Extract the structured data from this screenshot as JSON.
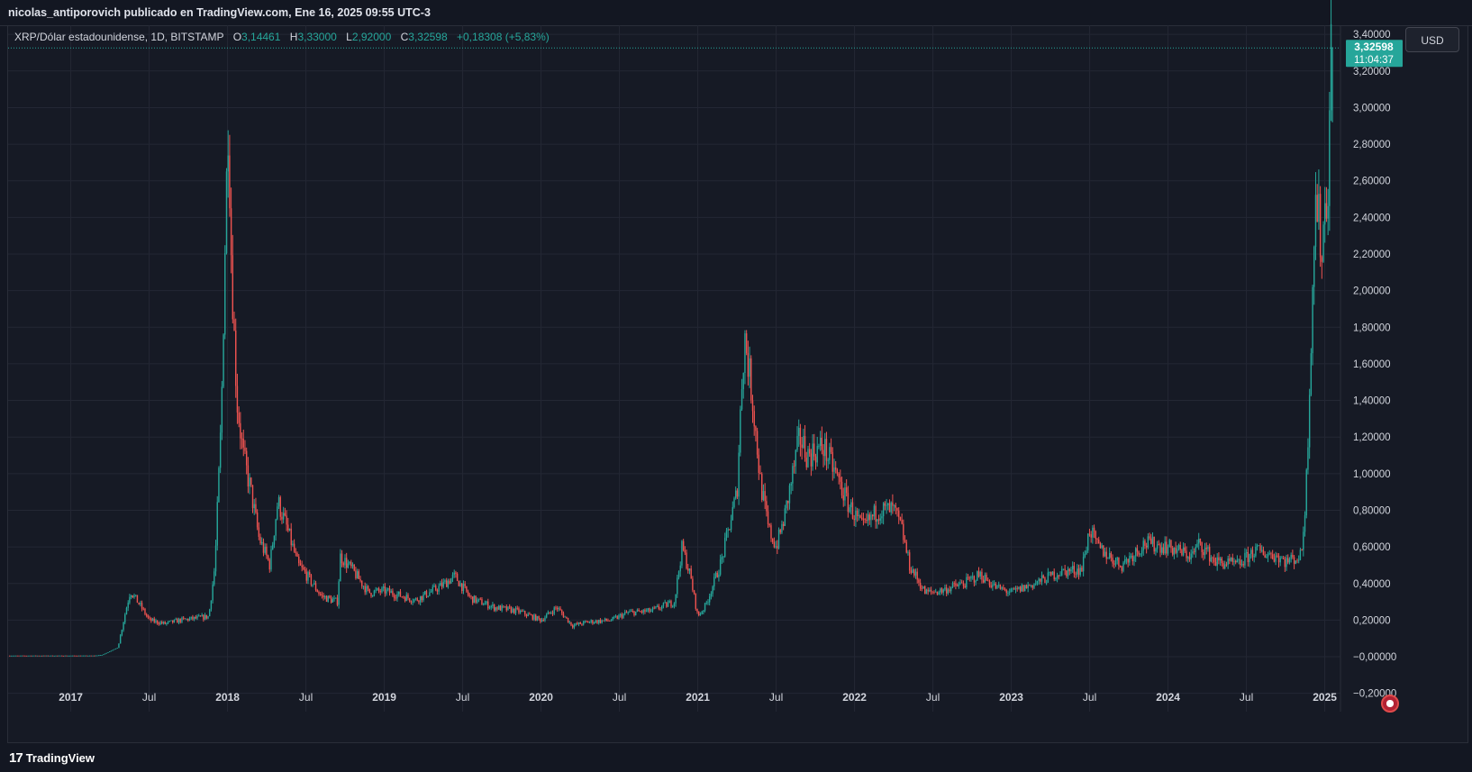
{
  "header": {
    "published_text": "nicolas_antiporovich publicado en TradingView.com, Ene 16, 2025 09:55 UTC-3"
  },
  "legend": {
    "symbol": "XRP/Dólar estadounidense, 1D, BITSTAMP",
    "open_label": "O",
    "open_value": "3,14461",
    "high_label": "H",
    "high_value": "3,33000",
    "low_label": "L",
    "low_value": "2,92000",
    "close_label": "C",
    "close_value": "3,32598",
    "change": "+0,18308 (+5,83%)"
  },
  "currency_button": "USD",
  "price_label": {
    "price": "3,32598",
    "countdown": "11:04:37"
  },
  "footer": {
    "brand": "TradingView",
    "logo_mark": "17"
  },
  "colors": {
    "up": "#26a69a",
    "down": "#ef5350",
    "background": "#161a25",
    "grid": "#232734",
    "text": "#d1d4dc"
  },
  "icons": {
    "flag": "us-flag-icon"
  },
  "chart_data": {
    "type": "candlestick",
    "symbol": "XRP/USD",
    "interval": "1D",
    "exchange": "BITSTAMP",
    "ylim": [
      -0.3,
      3.45
    ],
    "y_ticks": [
      "3,40000",
      "3,20000",
      "3,00000",
      "2,80000",
      "2,60000",
      "2,40000",
      "2,20000",
      "2,00000",
      "1,80000",
      "1,60000",
      "1,40000",
      "1,20000",
      "1,00000",
      "0,80000",
      "0,60000",
      "0,40000",
      "0,20000",
      "−0,00000",
      "−0,20000"
    ],
    "y_tick_values": [
      3.4,
      3.2,
      3.0,
      2.8,
      2.6,
      2.4,
      2.2,
      2.0,
      1.8,
      1.6,
      1.4,
      1.2,
      1.0,
      0.8,
      0.6,
      0.4,
      0.2,
      0.0,
      -0.2
    ],
    "x_range": [
      2016.6,
      2025.1
    ],
    "x_ticks": [
      "2017",
      "Jul",
      "2018",
      "Jul",
      "2019",
      "Jul",
      "2020",
      "Jul",
      "2021",
      "Jul",
      "2022",
      "Jul",
      "2023",
      "Jul",
      "2024",
      "Jul",
      "2025"
    ],
    "x_tick_values": [
      2017.0,
      2017.5,
      2018.0,
      2018.5,
      2019.0,
      2019.5,
      2020.0,
      2020.5,
      2021.0,
      2021.5,
      2022.0,
      2022.5,
      2023.0,
      2023.5,
      2024.0,
      2024.5,
      2025.0
    ],
    "last_close": 3.32598,
    "price_path": [
      [
        2016.6,
        0.006
      ],
      [
        2017.15,
        0.006
      ],
      [
        2017.2,
        0.01
      ],
      [
        2017.3,
        0.05
      ],
      [
        2017.35,
        0.25
      ],
      [
        2017.38,
        0.36
      ],
      [
        2017.45,
        0.27
      ],
      [
        2017.5,
        0.2
      ],
      [
        2017.6,
        0.18
      ],
      [
        2017.7,
        0.2
      ],
      [
        2017.8,
        0.21
      ],
      [
        2017.88,
        0.22
      ],
      [
        2017.92,
        0.5
      ],
      [
        2017.96,
        1.3
      ],
      [
        2017.985,
        2.3
      ],
      [
        2018.005,
        3.0
      ],
      [
        2018.02,
        2.3
      ],
      [
        2018.04,
        1.8
      ],
      [
        2018.06,
        1.4
      ],
      [
        2018.1,
        1.1
      ],
      [
        2018.15,
        0.9
      ],
      [
        2018.2,
        0.65
      ],
      [
        2018.27,
        0.5
      ],
      [
        2018.32,
        0.85
      ],
      [
        2018.38,
        0.7
      ],
      [
        2018.45,
        0.5
      ],
      [
        2018.5,
        0.45
      ],
      [
        2018.6,
        0.33
      ],
      [
        2018.7,
        0.3
      ],
      [
        2018.72,
        0.55
      ],
      [
        2018.8,
        0.47
      ],
      [
        2018.9,
        0.35
      ],
      [
        2019.0,
        0.36
      ],
      [
        2019.2,
        0.31
      ],
      [
        2019.35,
        0.38
      ],
      [
        2019.45,
        0.44
      ],
      [
        2019.55,
        0.32
      ],
      [
        2019.7,
        0.27
      ],
      [
        2019.85,
        0.25
      ],
      [
        2020.0,
        0.2
      ],
      [
        2020.1,
        0.27
      ],
      [
        2020.2,
        0.17
      ],
      [
        2020.3,
        0.19
      ],
      [
        2020.45,
        0.2
      ],
      [
        2020.55,
        0.24
      ],
      [
        2020.7,
        0.25
      ],
      [
        2020.85,
        0.3
      ],
      [
        2020.9,
        0.6
      ],
      [
        2020.95,
        0.45
      ],
      [
        2021.0,
        0.22
      ],
      [
        2021.05,
        0.28
      ],
      [
        2021.15,
        0.52
      ],
      [
        2021.25,
        0.9
      ],
      [
        2021.28,
        1.5
      ],
      [
        2021.3,
        1.75
      ],
      [
        2021.35,
        1.4
      ],
      [
        2021.4,
        0.95
      ],
      [
        2021.45,
        0.7
      ],
      [
        2021.5,
        0.6
      ],
      [
        2021.55,
        0.75
      ],
      [
        2021.65,
        1.2
      ],
      [
        2021.7,
        1.1
      ],
      [
        2021.8,
        1.15
      ],
      [
        2021.88,
        1.0
      ],
      [
        2021.95,
        0.85
      ],
      [
        2022.05,
        0.7
      ],
      [
        2022.15,
        0.8
      ],
      [
        2022.25,
        0.8
      ],
      [
        2022.3,
        0.7
      ],
      [
        2022.35,
        0.5
      ],
      [
        2022.45,
        0.35
      ],
      [
        2022.55,
        0.36
      ],
      [
        2022.7,
        0.4
      ],
      [
        2022.8,
        0.45
      ],
      [
        2022.9,
        0.38
      ],
      [
        2023.0,
        0.35
      ],
      [
        2023.15,
        0.4
      ],
      [
        2023.3,
        0.46
      ],
      [
        2023.45,
        0.48
      ],
      [
        2023.5,
        0.7
      ],
      [
        2023.55,
        0.6
      ],
      [
        2023.7,
        0.5
      ],
      [
        2023.85,
        0.62
      ],
      [
        2024.0,
        0.6
      ],
      [
        2024.15,
        0.55
      ],
      [
        2024.2,
        0.62
      ],
      [
        2024.3,
        0.52
      ],
      [
        2024.45,
        0.5
      ],
      [
        2024.55,
        0.58
      ],
      [
        2024.7,
        0.55
      ],
      [
        2024.75,
        0.52
      ],
      [
        2024.85,
        0.55
      ],
      [
        2024.88,
        0.9
      ],
      [
        2024.9,
        1.4
      ],
      [
        2024.92,
        2.0
      ],
      [
        2024.94,
        2.5
      ],
      [
        2024.96,
        2.4
      ],
      [
        2024.98,
        2.2
      ],
      [
        2025.0,
        2.45
      ],
      [
        2025.02,
        2.6
      ],
      [
        2025.04,
        3.33
      ]
    ]
  }
}
